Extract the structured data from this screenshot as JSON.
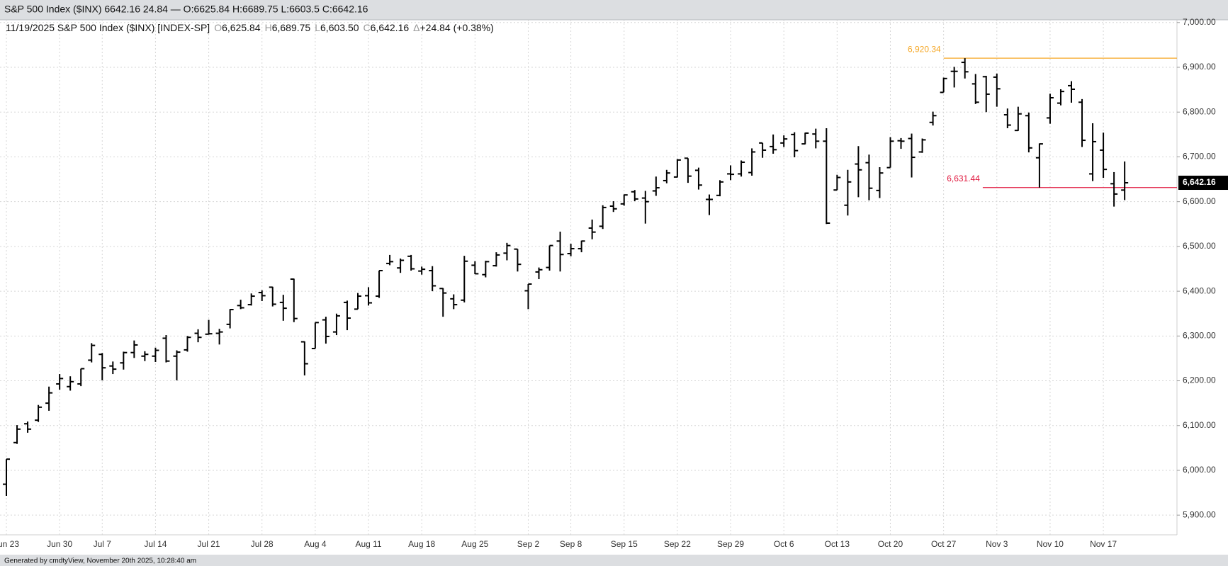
{
  "header": "S&P 500 Index ($INX) 6642.16 24.84 — O:6625.84 H:6689.75 L:6603.5 C:6642.16",
  "footer": "Generated by cmdtyView, November 20th 2025, 10:28:40 am",
  "chart_data": {
    "type": "ohlc",
    "title": "11/19/2025 S&P 500 Index ($INX) [INDEX-SP]",
    "legend_items": [
      {
        "prefix": "O",
        "label": "6,625.84"
      },
      {
        "prefix": "H",
        "label": "6,689.75"
      },
      {
        "prefix": "L",
        "label": "6,603.50"
      },
      {
        "prefix": "C",
        "label": "6,642.16"
      },
      {
        "prefix": "Δ",
        "label": "+24.84 (+0.38%)"
      }
    ],
    "color": "#000000",
    "grid": true,
    "categories": [
      "Jun 23",
      null,
      null,
      null,
      null,
      "Jun 30",
      null,
      null,
      null,
      "Jul 7",
      null,
      null,
      null,
      null,
      "Jul 14",
      null,
      null,
      null,
      null,
      "Jul 21",
      null,
      null,
      null,
      null,
      "Jul 28",
      null,
      null,
      null,
      null,
      "Aug 4",
      null,
      null,
      null,
      null,
      "Aug 11",
      null,
      null,
      null,
      null,
      "Aug 18",
      null,
      null,
      null,
      null,
      "Aug 25",
      null,
      null,
      null,
      null,
      "Sep 2",
      null,
      null,
      null,
      "Sep 8",
      null,
      null,
      null,
      null,
      "Sep 15",
      null,
      null,
      null,
      null,
      "Sep 22",
      null,
      null,
      null,
      null,
      "Sep 29",
      null,
      null,
      null,
      null,
      "Oct 6",
      null,
      null,
      null,
      null,
      "Oct 13",
      null,
      null,
      null,
      null,
      "Oct 20",
      null,
      null,
      null,
      null,
      "Oct 27",
      null,
      null,
      null,
      null,
      "Nov 3",
      null,
      null,
      null,
      null,
      "Nov 10",
      null,
      null,
      null,
      null,
      "Nov 17",
      null,
      null
    ],
    "open": [
      5969,
      6062,
      6104,
      6112,
      6150,
      6193,
      6187,
      6193,
      6246,
      6259,
      6233,
      6240,
      6263,
      6255,
      6255,
      6295,
      6255,
      6269,
      6306,
      6304,
      6306,
      6326,
      6368,
      6370,
      6397,
      6409,
      6375,
      6427,
      6287,
      6272,
      6336,
      6309,
      6375,
      6360,
      6390,
      6389,
      6462,
      6452,
      6478,
      6445,
      6446,
      6406,
      6383,
      6380,
      6458,
      6437,
      6457,
      6485,
      6494,
      6401,
      6443,
      6453,
      6512,
      6484,
      6495,
      6541,
      6545,
      6590,
      6595,
      6622,
      6608,
      6624,
      6647,
      6655,
      6697,
      6670,
      6605,
      6614,
      6662,
      6662,
      6665,
      6731,
      6723,
      6731,
      6750,
      6729,
      6751,
      6735,
      6626,
      6592,
      6684,
      6687,
      6625,
      6676,
      6736,
      6741,
      6711,
      6777,
      6844,
      6891,
      6911,
      6863,
      6879,
      6878,
      6794,
      6759,
      6792,
      6698,
      6787,
      6820,
      6859,
      6822,
      6662,
      6715,
      6640,
      6625.84
    ],
    "high": [
      6025,
      6101,
      6109,
      6146,
      6187,
      6215,
      6210,
      6227,
      6284,
      6262,
      6243,
      6265,
      6290,
      6266,
      6274,
      6302,
      6268,
      6300,
      6315,
      6336,
      6316,
      6360,
      6381,
      6395,
      6402,
      6410,
      6392,
      6428,
      6288,
      6330,
      6343,
      6350,
      6379,
      6396,
      6409,
      6446,
      6481,
      6473,
      6481,
      6455,
      6456,
      6407,
      6393,
      6479,
      6467,
      6468,
      6487,
      6508,
      6494,
      6416,
      6453,
      6502,
      6533,
      6506,
      6513,
      6560,
      6592,
      6601,
      6616,
      6626,
      6624,
      6656,
      6671,
      6695,
      6697,
      6676,
      6616,
      6648,
      6681,
      6692,
      6719,
      6731,
      6750,
      6748,
      6755,
      6754,
      6763,
      6764,
      6660,
      6671,
      6724,
      6705,
      6677,
      6744,
      6742,
      6752,
      6741,
      6801,
      6877,
      6901,
      6920.34,
      6885,
      6881,
      6886,
      6808,
      6812,
      6799,
      6730,
      6841,
      6851,
      6869,
      6829,
      6775,
      6754,
      6666,
      6689.75
    ],
    "low": [
      5943,
      6059,
      6084,
      6108,
      6133,
      6180,
      6178,
      6188,
      6241,
      6201,
      6215,
      6225,
      6251,
      6244,
      6242,
      6241,
      6201,
      6265,
      6286,
      6303,
      6281,
      6317,
      6360,
      6368,
      6378,
      6366,
      6334,
      6331,
      6212,
      6272,
      6283,
      6302,
      6313,
      6360,
      6368,
      6385,
      6458,
      6441,
      6446,
      6437,
      6400,
      6343,
      6360,
      6375,
      6438,
      6431,
      6455,
      6469,
      6444,
      6360,
      6427,
      6446,
      6444,
      6478,
      6487,
      6516,
      6539,
      6577,
      6591,
      6601,
      6551,
      6613,
      6641,
      6654,
      6642,
      6627,
      6570,
      6612,
      6648,
      6656,
      6658,
      6698,
      6707,
      6722,
      6699,
      6728,
      6719,
      6550,
      6626,
      6569,
      6610,
      6603,
      6608,
      6676,
      6718,
      6654,
      6709,
      6770,
      6844,
      6855,
      6875,
      6818,
      6800,
      6812,
      6764,
      6758,
      6710,
      6631.44,
      6774,
      6815,
      6821,
      6722,
      6646,
      6653,
      6589,
      6603.5
    ],
    "close": [
      6025,
      6092,
      6092,
      6141,
      6173,
      6205,
      6198,
      6227,
      6279,
      6229,
      6226,
      6263,
      6280,
      6259,
      6268,
      6244,
      6264,
      6297,
      6297,
      6305,
      6309,
      6359,
      6363,
      6389,
      6390,
      6371,
      6362,
      6339,
      6238,
      6330,
      6299,
      6345,
      6340,
      6389,
      6374,
      6446,
      6466,
      6469,
      6450,
      6449,
      6412,
      6396,
      6370,
      6467,
      6439,
      6466,
      6481,
      6502,
      6460,
      6416,
      6448,
      6502,
      6482,
      6495,
      6512,
      6532,
      6587,
      6584,
      6615,
      6606,
      6600,
      6631,
      6664,
      6693,
      6657,
      6637,
      6605,
      6644,
      6661,
      6688,
      6711,
      6715,
      6716,
      6740,
      6714,
      6753,
      6735,
      6552,
      6654,
      6644,
      6671,
      6630,
      6664,
      6735,
      6735,
      6699,
      6738,
      6792,
      6875,
      6891,
      6890,
      6822,
      6840,
      6852,
      6771,
      6796,
      6720,
      6729,
      6832,
      6846,
      6851,
      6737,
      6734,
      6672,
      6617,
      6642.16
    ],
    "ylim": [
      5856,
      7006
    ],
    "yticks": [
      {
        "value": 5900,
        "label": "5,900.00"
      },
      {
        "value": 6000,
        "label": "6,000.00"
      },
      {
        "value": 6100,
        "label": "6,100.00"
      },
      {
        "value": 6200,
        "label": "6,200.00"
      },
      {
        "value": 6300,
        "label": "6,300.00"
      },
      {
        "value": 6400,
        "label": "6,400.00"
      },
      {
        "value": 6500,
        "label": "6,500.00"
      },
      {
        "value": 6600,
        "label": "6,600.00"
      },
      {
        "value": 6700,
        "label": "6,700.00"
      },
      {
        "value": 6800,
        "label": "6,800.00"
      },
      {
        "value": 6900,
        "label": "6,900.00"
      },
      {
        "value": 7000,
        "label": "7,000.00"
      }
    ],
    "annotations": [
      {
        "value": 6920.34,
        "label": "6,920.34",
        "color": "#f5a623"
      },
      {
        "value": 6631.44,
        "label": "6,631.44",
        "color": "#e0193f"
      }
    ],
    "last_price": {
      "value": 6642.16,
      "label": "6,642.16"
    }
  }
}
